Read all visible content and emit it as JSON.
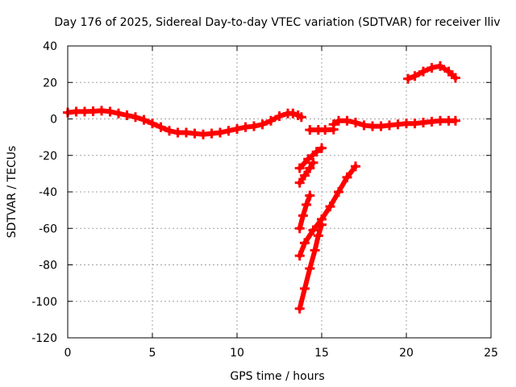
{
  "chart_data": {
    "type": "scatter",
    "title": "Day 176 of 2025, Sidereal Day-to-day VTEC variation (SDTVAR) for receiver lliv",
    "xlabel": "GPS time / hours",
    "ylabel": "SDTVAR / TECUs",
    "xlim": [
      0,
      25
    ],
    "ylim": [
      -120,
      40
    ],
    "xticks": [
      0,
      5,
      10,
      15,
      20,
      25
    ],
    "yticks": [
      -120,
      -100,
      -80,
      -60,
      -40,
      -20,
      0,
      20,
      40
    ],
    "grid": true,
    "legend": "none",
    "marker": "plus",
    "color": "#ff0000",
    "series": [
      {
        "x": [
          0,
          0.5,
          1,
          1.5,
          2,
          2.5,
          3,
          3.5,
          4,
          4.5,
          5,
          5.5,
          6,
          6.5,
          7,
          7.5,
          8,
          8.5,
          9,
          9.5,
          10,
          10.5,
          11,
          11.5,
          12,
          12.5,
          13,
          13.3,
          13.6,
          13.8
        ],
        "y": [
          3.5,
          4,
          4,
          4.2,
          4.5,
          4,
          3,
          2,
          1,
          -0.5,
          -2.5,
          -4.5,
          -6.5,
          -7.5,
          -7.5,
          -8,
          -8.5,
          -8,
          -7.5,
          -6.5,
          -5.5,
          -4.5,
          -4,
          -3,
          -1,
          1.5,
          3,
          3,
          2,
          1
        ]
      },
      {
        "x": [
          14.3,
          14.8,
          15.2,
          15.7
        ],
        "y": [
          -6,
          -6,
          -6,
          -5.8
        ]
      },
      {
        "x": [
          15.7,
          16,
          16.5,
          17,
          17.5,
          18,
          18.5,
          19,
          19.5,
          20,
          20.5,
          21,
          21.5,
          22,
          22.5,
          22.9
        ],
        "y": [
          -3,
          -1,
          -1,
          -2,
          -3.5,
          -4,
          -4,
          -3.5,
          -3,
          -2.5,
          -2.5,
          -2,
          -1.5,
          -1,
          -1,
          -1
        ]
      },
      {
        "x": [
          20.1,
          20.5,
          21,
          21.5,
          22,
          22.5,
          22.9
        ],
        "y": [
          22,
          23.5,
          26,
          28,
          29,
          26,
          22.5
        ]
      },
      {
        "x": [
          13.7,
          14.2,
          14.7,
          15
        ],
        "y": [
          -27,
          -22,
          -18,
          -16
        ]
      },
      {
        "x": [
          13.7,
          14.0,
          14.3,
          14.5
        ],
        "y": [
          -35,
          -31,
          -27,
          -24
        ]
      },
      {
        "x": [
          13.7,
          13.9,
          14.1,
          14.3
        ],
        "y": [
          -60,
          -53,
          -47,
          -42
        ]
      },
      {
        "x": [
          13.7,
          14.0,
          14.5,
          15.0,
          15.5,
          16.0,
          16.5,
          17.0
        ],
        "y": [
          -75,
          -68,
          -61,
          -55,
          -48,
          -40,
          -32,
          -26
        ]
      },
      {
        "x": [
          13.7,
          14.0,
          14.3,
          14.6,
          14.8,
          15.0
        ],
        "y": [
          -104,
          -93,
          -82,
          -72,
          -64,
          -58
        ]
      }
    ]
  }
}
